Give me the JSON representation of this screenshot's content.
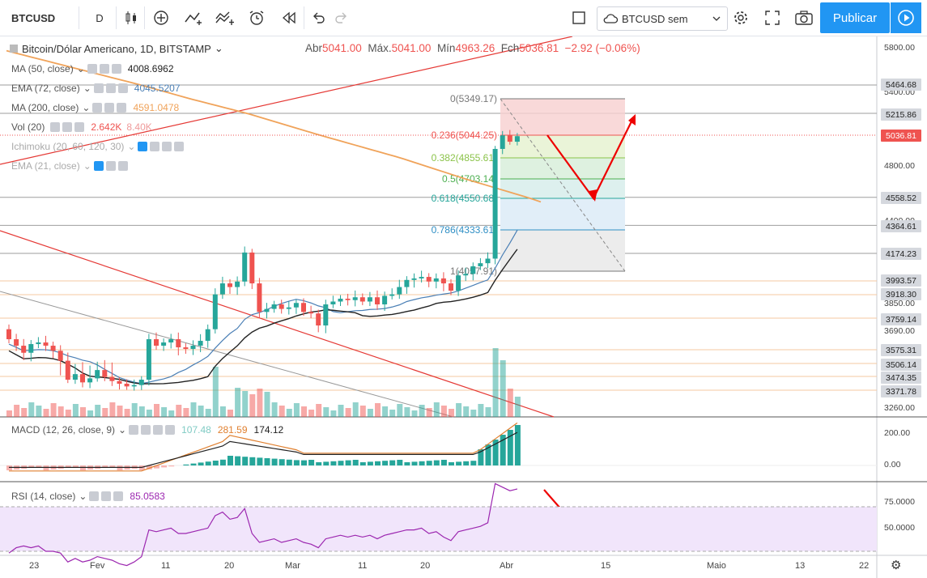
{
  "toolbar": {
    "symbol": "BTCUSD",
    "interval": "D",
    "template_label": "BTCUSD sem",
    "publish_label": "Publicar"
  },
  "header": {
    "title": "Bitcoin/Dólar Americano, 1D, BITSTAMP",
    "open_label": "Abr",
    "open": "5041.00",
    "high_label": "Máx.",
    "high": "5041.00",
    "low_label": "Mín",
    "low": "4963.26",
    "close_label": "Fch",
    "close": "5036.81",
    "change": "−2.92 (−0.06%)"
  },
  "indicators": [
    {
      "label": "MA (50, close)",
      "value": "4008.6962",
      "value2": "",
      "color": "#222222"
    },
    {
      "label": "EMA (72, close)",
      "value": "4045.5207",
      "value2": "",
      "color": "#4a7fb5"
    },
    {
      "label": "MA (200, close)",
      "value": "4591.0478",
      "value2": "",
      "color": "#f0a35a"
    },
    {
      "label": "Vol (20)",
      "value": "2.642K",
      "value2": "8.40K",
      "color": "#ef5350"
    },
    {
      "label": "Ichimoku (20, 60, 120, 30)",
      "value": "",
      "value2": "",
      "color": "#999999"
    },
    {
      "label": "EMA (21, close)",
      "value": "",
      "value2": "",
      "color": "#999999"
    }
  ],
  "macd": {
    "label": "MACD (12, 26, close, 9)",
    "v1": "107.48",
    "v2": "281.59",
    "v3": "174.12"
  },
  "rsi": {
    "label": "RSI (14, close)",
    "value": "85.0583"
  },
  "fib_levels": [
    {
      "label": "0(5349.17)",
      "color": "#777777"
    },
    {
      "label": "0.236(5044.25)",
      "color": "#ef5350"
    },
    {
      "label": "0.382(4855.61)",
      "color": "#8bc34a"
    },
    {
      "label": "0.5(4703.14)",
      "color": "#4caf50"
    },
    {
      "label": "0.618(4550.68)",
      "color": "#26a69a"
    },
    {
      "label": "0.786(4333.61)",
      "color": "#2f8fc5"
    },
    {
      "label": "1(4057.91)",
      "color": "#777777"
    }
  ],
  "price_axis": {
    "ticks": [
      "5800.00",
      "5400.00",
      "4800.00",
      "4400.00",
      "3850.00",
      "3690.00",
      "3260.00"
    ],
    "labels": [
      "5464.68",
      "5215.86",
      "5036.81",
      "4558.52",
      "4364.61",
      "4174.23",
      "3993.57",
      "3918.30",
      "3759.14",
      "3575.31",
      "3506.14",
      "3474.35",
      "3371.78"
    ],
    "macd_ticks": [
      "200.00",
      "0.00"
    ],
    "rsi_ticks": [
      "75.0000",
      "50.0000"
    ]
  },
  "time_axis": [
    "23",
    "Fev",
    "11",
    "20",
    "Mar",
    "11",
    "20",
    "Abr",
    "15",
    "Maio",
    "13",
    "22"
  ],
  "colors": {
    "up": "#26a69a",
    "down": "#ef5350",
    "accent": "#2196f3",
    "rsi": "#9c27b0"
  },
  "chart_data": {
    "type": "candlestick",
    "symbol": "BTCUSD",
    "ylim": [
      3200,
      5900
    ],
    "x": [
      "23",
      "Fev",
      "11",
      "20",
      "Mar",
      "11",
      "20",
      "Abr",
      "15",
      "Maio",
      "13",
      "22"
    ],
    "last_close": 5036.81,
    "fibonacci": [
      5349.17,
      5044.25,
      4855.61,
      4703.14,
      4550.68,
      4333.61,
      4057.91
    ],
    "horizontal_levels": [
      5464.68,
      5215.86,
      4558.52,
      4364.61,
      4174.23,
      3993.57,
      3918.3,
      3759.14,
      3575.31,
      3506.14,
      3474.35,
      3371.78
    ],
    "ma50": 4008.6962,
    "ema72": 4045.5207,
    "ma200": 4591.0478,
    "rsi_last": 85.0583
  }
}
